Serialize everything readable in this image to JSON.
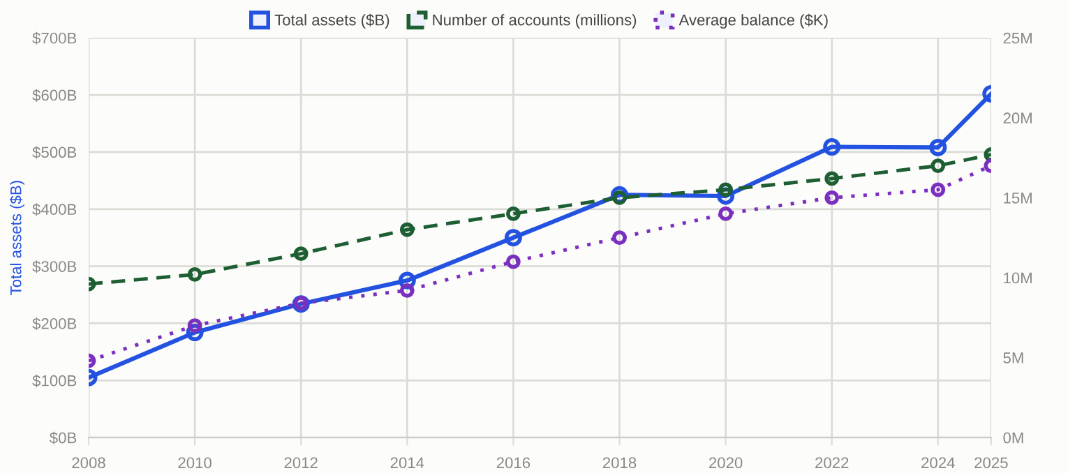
{
  "chart_data": {
    "type": "line",
    "ylabel": "Total assets ($B)",
    "x": [
      2008,
      2010,
      2012,
      2014,
      2016,
      2018,
      2020,
      2022,
      2024,
      2025
    ],
    "series": [
      {
        "name": "Total assets ($B)",
        "color": "#2352e0",
        "line_style": "solid",
        "values": [
          105,
          184,
          234,
          275,
          350,
          425,
          423,
          509,
          508,
          602
        ]
      },
      {
        "name": "Number of accounts (millions)",
        "color": "#1d5e33",
        "line_style": "dashed",
        "axis": "y2",
        "values": [
          9.6,
          10.2,
          11.5,
          13.0,
          14.0,
          15.0,
          15.5,
          16.2,
          17.0,
          17.7
        ]
      },
      {
        "name": "Average balance ($K)",
        "color": "#7b2fbf",
        "line_style": "dotted",
        "axis": "y2",
        "values": [
          4.8,
          7.0,
          8.4,
          9.2,
          11.0,
          12.5,
          14.0,
          15.0,
          15.5,
          17.0
        ]
      }
    ],
    "xlim": [
      2008,
      2025
    ],
    "xticks": [
      2008,
      2010,
      2012,
      2014,
      2016,
      2018,
      2020,
      2022,
      2024,
      2025
    ],
    "ylim": [
      0,
      700
    ],
    "yticks": [
      {
        "value": 0,
        "label": "$0B"
      },
      {
        "value": 100,
        "label": "$100B"
      },
      {
        "value": 200,
        "label": "$200B"
      },
      {
        "value": 300,
        "label": "$300B"
      },
      {
        "value": 400,
        "label": "$400B"
      },
      {
        "value": 500,
        "label": "$500B"
      },
      {
        "value": 600,
        "label": "$600B"
      },
      {
        "value": 700,
        "label": "$700B"
      }
    ],
    "y2lim": [
      0,
      25
    ],
    "y2ticks": [
      {
        "value": 0,
        "label": "0M"
      },
      {
        "value": 5,
        "label": "5M"
      },
      {
        "value": 10,
        "label": "10M"
      },
      {
        "value": 15,
        "label": "15M"
      },
      {
        "value": 20,
        "label": "20M"
      },
      {
        "value": 25,
        "label": "25M"
      }
    ],
    "grid": true,
    "legend": "top",
    "marker": "circle"
  }
}
